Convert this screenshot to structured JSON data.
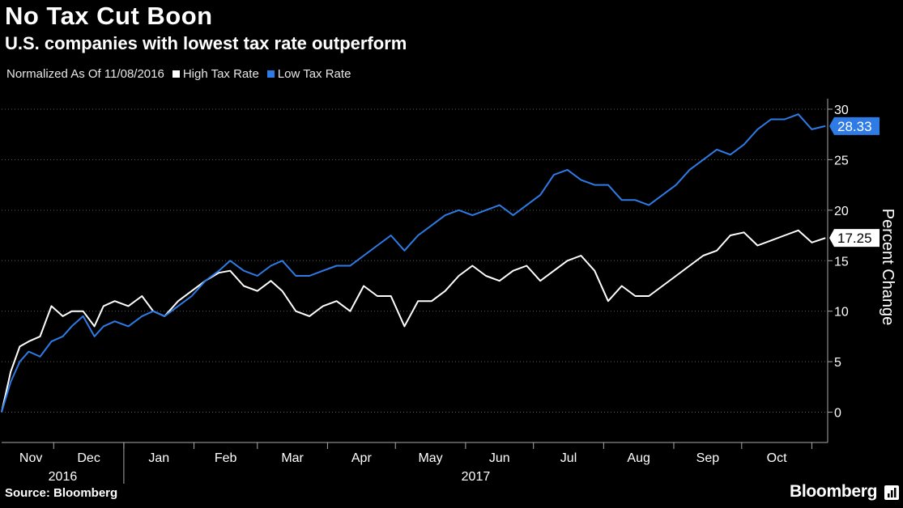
{
  "header": {
    "title": "No Tax Cut Boon",
    "subtitle": "U.S. companies with lowest tax rate outperform"
  },
  "legend": {
    "note": "Normalized As Of 11/08/2016",
    "items": [
      {
        "label": "High Tax Rate",
        "color": "#ffffff"
      },
      {
        "label": "Low Tax Rate",
        "color": "#2e7be6"
      }
    ]
  },
  "footer": {
    "source": "Source: Bloomberg",
    "brand": "Bloomberg"
  },
  "chart_data": {
    "type": "line",
    "ylabel": "Percent Change",
    "ylim": [
      -3,
      32
    ],
    "y_ticks": [
      0,
      5,
      10,
      15,
      20,
      25,
      30
    ],
    "x_month_labels": [
      "Nov",
      "Dec",
      "Jan",
      "Feb",
      "Mar",
      "Apr",
      "May",
      "Jun",
      "Jul",
      "Aug",
      "Sep",
      "Oct"
    ],
    "x_year_labels": [
      "2016",
      "2017"
    ],
    "series": [
      {
        "name": "High Tax Rate",
        "color": "#ffffff",
        "last_value": "17.25",
        "x": [
          "2016-11-08",
          "2016-11-12",
          "2016-11-16",
          "2016-11-20",
          "2016-11-25",
          "2016-11-30",
          "2016-12-05",
          "2016-12-09",
          "2016-12-14",
          "2016-12-19",
          "2016-12-23",
          "2016-12-28",
          "2017-01-03",
          "2017-01-09",
          "2017-01-14",
          "2017-01-19",
          "2017-01-25",
          "2017-01-31",
          "2017-02-06",
          "2017-02-12",
          "2017-02-17",
          "2017-02-23",
          "2017-03-01",
          "2017-03-07",
          "2017-03-12",
          "2017-03-18",
          "2017-03-24",
          "2017-03-30",
          "2017-04-05",
          "2017-04-11",
          "2017-04-17",
          "2017-04-23",
          "2017-04-29",
          "2017-05-05",
          "2017-05-11",
          "2017-05-17",
          "2017-05-23",
          "2017-05-29",
          "2017-06-04",
          "2017-06-10",
          "2017-06-16",
          "2017-06-22",
          "2017-06-28",
          "2017-07-04",
          "2017-07-10",
          "2017-07-16",
          "2017-07-22",
          "2017-07-28",
          "2017-08-03",
          "2017-08-09",
          "2017-08-15",
          "2017-08-21",
          "2017-08-27",
          "2017-09-02",
          "2017-09-08",
          "2017-09-14",
          "2017-09-20",
          "2017-09-26",
          "2017-10-02",
          "2017-10-08",
          "2017-10-14",
          "2017-10-20",
          "2017-10-26",
          "2017-11-01",
          "2017-11-07"
        ],
        "values": [
          0,
          4,
          6.5,
          7,
          7.5,
          10.5,
          9.5,
          10,
          10,
          8.5,
          10.5,
          11,
          10.5,
          11.5,
          10,
          9.5,
          11,
          12,
          13,
          13.8,
          14,
          12.5,
          12,
          13,
          12,
          10,
          9.5,
          10.5,
          11,
          10,
          12.5,
          11.5,
          11.5,
          8.5,
          11,
          11,
          12,
          13.5,
          14.5,
          13.5,
          13,
          14,
          14.5,
          13,
          14,
          15,
          15.5,
          14,
          11,
          12.5,
          11.5,
          11.5,
          12.5,
          13.5,
          14.5,
          15.5,
          16,
          17.5,
          17.8,
          16.5,
          17,
          17.5,
          18,
          16.8,
          17.25
        ]
      },
      {
        "name": "Low Tax Rate",
        "color": "#2e7be6",
        "last_value": "28.33",
        "x": [
          "2016-11-08",
          "2016-11-12",
          "2016-11-16",
          "2016-11-20",
          "2016-11-25",
          "2016-11-30",
          "2016-12-05",
          "2016-12-09",
          "2016-12-14",
          "2016-12-19",
          "2016-12-23",
          "2016-12-28",
          "2017-01-03",
          "2017-01-09",
          "2017-01-14",
          "2017-01-19",
          "2017-01-25",
          "2017-01-31",
          "2017-02-06",
          "2017-02-12",
          "2017-02-17",
          "2017-02-23",
          "2017-03-01",
          "2017-03-07",
          "2017-03-12",
          "2017-03-18",
          "2017-03-24",
          "2017-03-30",
          "2017-04-05",
          "2017-04-11",
          "2017-04-17",
          "2017-04-23",
          "2017-04-29",
          "2017-05-05",
          "2017-05-11",
          "2017-05-17",
          "2017-05-23",
          "2017-05-29",
          "2017-06-04",
          "2017-06-10",
          "2017-06-16",
          "2017-06-22",
          "2017-06-28",
          "2017-07-04",
          "2017-07-10",
          "2017-07-16",
          "2017-07-22",
          "2017-07-28",
          "2017-08-03",
          "2017-08-09",
          "2017-08-15",
          "2017-08-21",
          "2017-08-27",
          "2017-09-02",
          "2017-09-08",
          "2017-09-14",
          "2017-09-20",
          "2017-09-26",
          "2017-10-02",
          "2017-10-08",
          "2017-10-14",
          "2017-10-20",
          "2017-10-26",
          "2017-11-01",
          "2017-11-07"
        ],
        "values": [
          0,
          3,
          5,
          6,
          5.5,
          7,
          7.5,
          8.5,
          9.5,
          7.5,
          8.5,
          9,
          8.5,
          9.5,
          10,
          9.5,
          10.5,
          11.5,
          13,
          14,
          15,
          14,
          13.5,
          14.5,
          15,
          13.5,
          13.5,
          14,
          14.5,
          14.5,
          15.5,
          16.5,
          17.5,
          16,
          17.5,
          18.5,
          19.5,
          20,
          19.5,
          20,
          20.5,
          19.5,
          20.5,
          21.5,
          23.5,
          24,
          23,
          22.5,
          22.5,
          21,
          21,
          20.5,
          21.5,
          22.5,
          24,
          25,
          26,
          25.5,
          26.5,
          28,
          29,
          29,
          29.5,
          28,
          28.33
        ]
      }
    ]
  }
}
